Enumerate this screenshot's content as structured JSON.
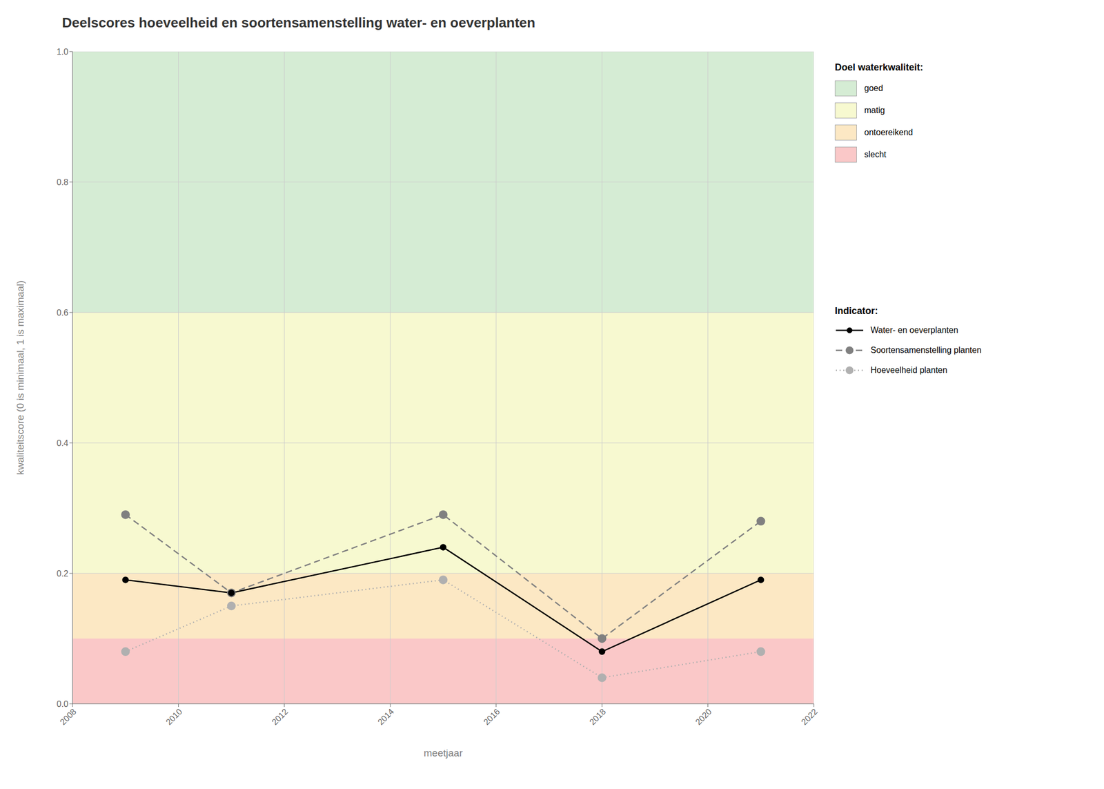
{
  "chart_data": {
    "type": "line",
    "title": "Deelscores hoeveelheid en soortensamenstelling water- en oeverplanten",
    "x_label": "meetjaar",
    "y_label": "kwaliteitscore (0 is minimaal, 1 is maximaal)",
    "x": [
      2009,
      2011,
      2015,
      2018,
      2021
    ],
    "series": [
      {
        "name": "Water- en oeverplanten",
        "color": "#000000",
        "line_style": "solid",
        "marker": "circle",
        "values": [
          0.19,
          0.17,
          0.24,
          0.08,
          0.19
        ]
      },
      {
        "name": "Soortensamenstelling planten",
        "color": "#808080",
        "line_style": "dashed",
        "marker": "circle",
        "values": [
          0.29,
          0.17,
          0.29,
          0.1,
          0.28
        ]
      },
      {
        "name": "Hoeveelheid planten",
        "color": "#b0b0b0",
        "line_style": "dotted",
        "marker": "circle",
        "values": [
          0.08,
          0.15,
          0.19,
          0.04,
          0.08
        ]
      }
    ],
    "bands": [
      {
        "ymin": 0.6,
        "ymax": 1.0,
        "color": "#d5ecd4",
        "label": "goed"
      },
      {
        "ymin": 0.2,
        "ymax": 0.6,
        "color": "#f7f9d0",
        "label": "matig"
      },
      {
        "ymin": 0.1,
        "ymax": 0.2,
        "color": "#fce8c4",
        "label": "ontoereikend"
      },
      {
        "ymin": 0.0,
        "ymax": 0.1,
        "color": "#fac8c8",
        "label": "slecht"
      }
    ],
    "band_legend_title": "Doel waterkwaliteit:",
    "series_legend_title": "Indicator:",
    "xlim": [
      2008,
      2022
    ],
    "ylim": [
      0.0,
      1.0
    ],
    "xticks": [
      2008,
      2010,
      2012,
      2014,
      2016,
      2018,
      2020,
      2022
    ],
    "yticks": [
      {
        "value": 0,
        "label": "0.0"
      },
      0.2,
      0.4,
      0.6,
      0.8,
      {
        "value": 1,
        "label": "1.0"
      }
    ],
    "grid": true,
    "legend": "right"
  }
}
